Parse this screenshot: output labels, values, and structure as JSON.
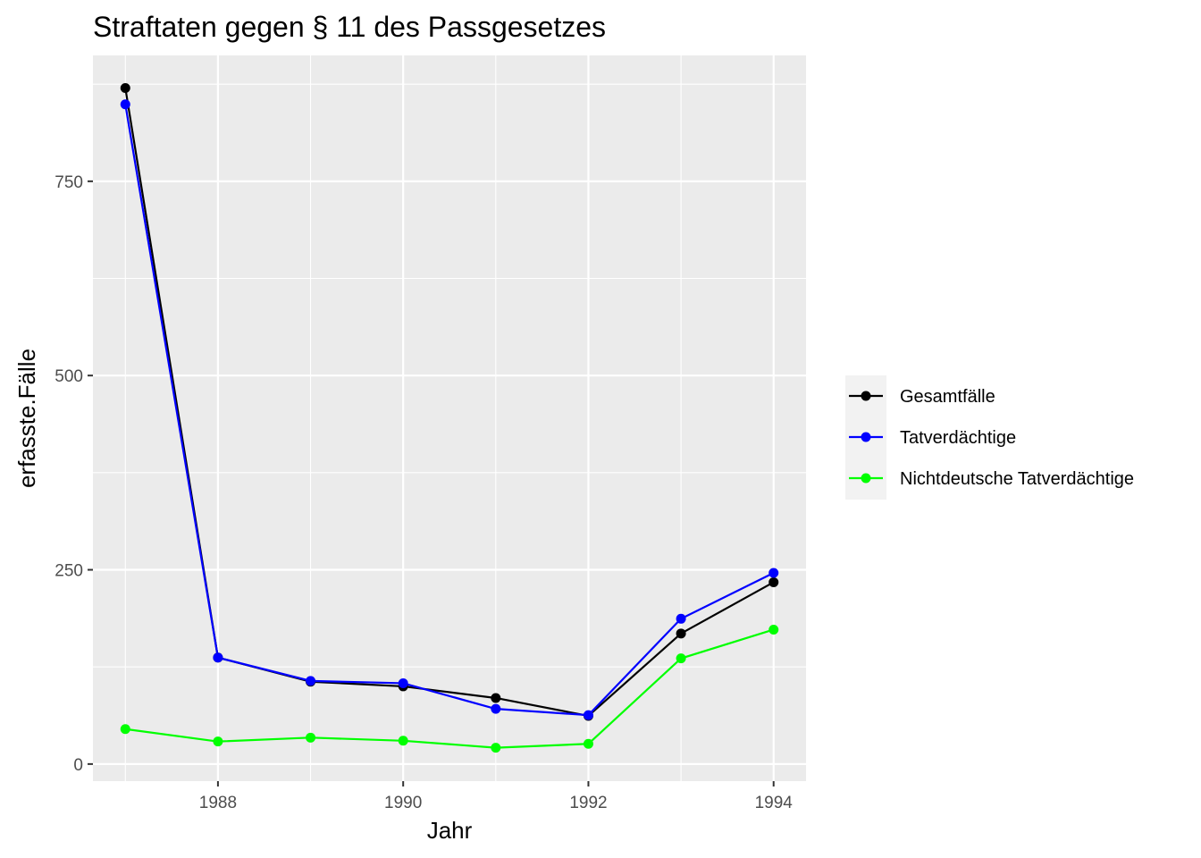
{
  "chart_data": {
    "type": "line",
    "title": "Straftaten gegen § 11 des Passgesetzes",
    "xlabel": "Jahr",
    "ylabel": "erfasste.Fälle",
    "x": [
      1987,
      1988,
      1989,
      1990,
      1991,
      1992,
      1993,
      1994
    ],
    "xlim": [
      1986.65,
      1994.35
    ],
    "ylim": [
      -22,
      912
    ],
    "x_ticks": [
      1988,
      1990,
      1992,
      1994
    ],
    "y_ticks": [
      0,
      250,
      500,
      750
    ],
    "grid": true,
    "legend_position": "right",
    "series": [
      {
        "name": "Gesamtfälle",
        "color": "#000000",
        "values": [
          870,
          137,
          106,
          100,
          85,
          62,
          168,
          234
        ]
      },
      {
        "name": "Tatverdächtige",
        "color": "#0000ff",
        "values": [
          849,
          137,
          107,
          104,
          71,
          63,
          187,
          246
        ]
      },
      {
        "name": "Nichtdeutsche Tatverdächtige",
        "color": "#00ff00",
        "values": [
          45,
          29,
          34,
          30,
          21,
          26,
          136,
          173
        ]
      }
    ]
  }
}
